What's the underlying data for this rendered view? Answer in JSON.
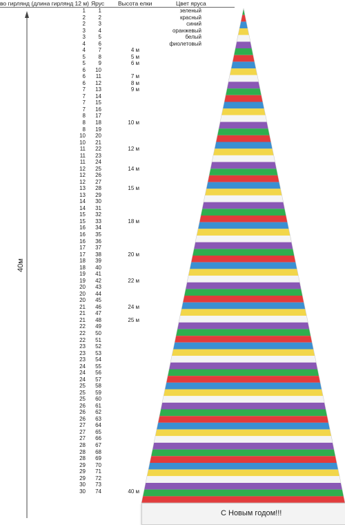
{
  "headers": {
    "garlands": "во гирлянд (длина гирлянд 12 м)",
    "tier": "Ярус",
    "tree_height": "Высота елки",
    "tier_color": "Цвет яруса"
  },
  "colors": [
    {
      "label": "зеленый",
      "hex": "#2fae4e"
    },
    {
      "label": "красный",
      "hex": "#e23b3b"
    },
    {
      "label": "синий",
      "hex": "#3b8fd2"
    },
    {
      "label": "оранжевый",
      "hex": "#f2d64a"
    },
    {
      "label": "белый",
      "hex": "#f4f4f4"
    },
    {
      "label": "фиолетовый",
      "hex": "#8a58b5"
    }
  ],
  "tier_rows": [
    {
      "garlands": "1",
      "tier": "1"
    },
    {
      "garlands": "2",
      "tier": "2"
    },
    {
      "garlands": "2",
      "tier": "3"
    },
    {
      "garlands": "3",
      "tier": "4"
    },
    {
      "garlands": "3",
      "tier": "5"
    },
    {
      "garlands": "4",
      "tier": "6"
    },
    {
      "garlands": "4",
      "tier": "7",
      "height": "4 м"
    },
    {
      "garlands": "5",
      "tier": "8",
      "height": "5 м"
    },
    {
      "garlands": "5",
      "tier": "9",
      "height": "6 м"
    },
    {
      "garlands": "6",
      "tier": "10"
    },
    {
      "garlands": "6",
      "tier": "11",
      "height": "7 м"
    },
    {
      "garlands": "6",
      "tier": "12",
      "height": "8 м"
    },
    {
      "garlands": "7",
      "tier": "13",
      "height": "9 м"
    },
    {
      "garlands": "7",
      "tier": "14"
    },
    {
      "garlands": "7",
      "tier": "15"
    },
    {
      "garlands": "7",
      "tier": "16"
    },
    {
      "garlands": "8",
      "tier": "17"
    },
    {
      "garlands": "8",
      "tier": "18",
      "height": "10 м"
    },
    {
      "garlands": "8",
      "tier": "19"
    },
    {
      "garlands": "10",
      "tier": "20"
    },
    {
      "garlands": "10",
      "tier": "21"
    },
    {
      "garlands": "11",
      "tier": "22",
      "height": "12 м"
    },
    {
      "garlands": "11",
      "tier": "23"
    },
    {
      "garlands": "11",
      "tier": "24"
    },
    {
      "garlands": "12",
      "tier": "25",
      "height": "14 м"
    },
    {
      "garlands": "12",
      "tier": "26"
    },
    {
      "garlands": "12",
      "tier": "27"
    },
    {
      "garlands": "13",
      "tier": "28",
      "height": "15 м"
    },
    {
      "garlands": "13",
      "tier": "29"
    },
    {
      "garlands": "14",
      "tier": "30"
    },
    {
      "garlands": "14",
      "tier": "31"
    },
    {
      "garlands": "15",
      "tier": "32"
    },
    {
      "garlands": "15",
      "tier": "33",
      "height": "18 м"
    },
    {
      "garlands": "16",
      "tier": "34"
    },
    {
      "garlands": "16",
      "tier": "35"
    },
    {
      "garlands": "16",
      "tier": "36"
    },
    {
      "garlands": "17",
      "tier": "37"
    },
    {
      "garlands": "17",
      "tier": "38",
      "height": "20 м"
    },
    {
      "garlands": "18",
      "tier": "39"
    },
    {
      "garlands": "18",
      "tier": "40"
    },
    {
      "garlands": "19",
      "tier": "41"
    },
    {
      "garlands": "19",
      "tier": "42",
      "height": "22 м"
    },
    {
      "garlands": "20",
      "tier": "43"
    },
    {
      "garlands": "20",
      "tier": "44"
    },
    {
      "garlands": "20",
      "tier": "45"
    },
    {
      "garlands": "21",
      "tier": "46",
      "height": "24 м"
    },
    {
      "garlands": "21",
      "tier": "47"
    },
    {
      "garlands": "21",
      "tier": "48",
      "height": "25 м"
    },
    {
      "garlands": "22",
      "tier": "49"
    },
    {
      "garlands": "22",
      "tier": "50"
    },
    {
      "garlands": "22",
      "tier": "51"
    },
    {
      "garlands": "23",
      "tier": "52"
    },
    {
      "garlands": "23",
      "tier": "53"
    },
    {
      "garlands": "23",
      "tier": "54"
    },
    {
      "garlands": "24",
      "tier": "55"
    },
    {
      "garlands": "24",
      "tier": "56"
    },
    {
      "garlands": "24",
      "tier": "57"
    },
    {
      "garlands": "25",
      "tier": "58"
    },
    {
      "garlands": "25",
      "tier": "59"
    },
    {
      "garlands": "25",
      "tier": "60"
    },
    {
      "garlands": "26",
      "tier": "61"
    },
    {
      "garlands": "26",
      "tier": "62"
    },
    {
      "garlands": "26",
      "tier": "63"
    },
    {
      "garlands": "27",
      "tier": "64"
    },
    {
      "garlands": "27",
      "tier": "65"
    },
    {
      "garlands": "27",
      "tier": "66"
    },
    {
      "garlands": "28",
      "tier": "67"
    },
    {
      "garlands": "28",
      "tier": "68"
    },
    {
      "garlands": "28",
      "tier": "69"
    },
    {
      "garlands": "29",
      "tier": "70"
    },
    {
      "garlands": "29",
      "tier": "71"
    },
    {
      "garlands": "29",
      "tier": "72"
    },
    {
      "garlands": "30",
      "tier": "73"
    },
    {
      "garlands": "30",
      "tier": "74",
      "height": "40 м"
    }
  ],
  "tree": {
    "total_height_label": "40м",
    "tier_count": 74,
    "band_cycle": [
      "#2fae4e",
      "#e23b3b",
      "#3b8fd2",
      "#f2d64a",
      "#f4f4f4",
      "#8a58b5"
    ]
  },
  "greeting": "С Новым годом!!!"
}
